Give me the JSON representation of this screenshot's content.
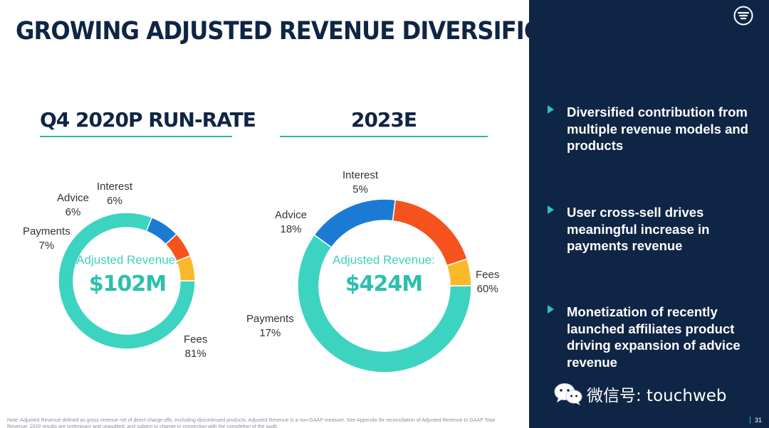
{
  "title": "GROWING ADJUSTED REVENUE DIVERSIFICATION",
  "chart_data": [
    {
      "type": "pie",
      "title": "Q4 2020P RUN-RATE",
      "center_label": "Adjusted Revenue:",
      "center_value": "$102M",
      "categories": [
        "Fees",
        "Payments",
        "Advice",
        "Interest"
      ],
      "values": [
        81,
        7,
        6,
        6
      ],
      "value_labels": [
        "81%",
        "7%",
        "6%",
        "6%"
      ],
      "colors": [
        "#3dd3c1",
        "#1b7bd4",
        "#f5521d",
        "#fbb82b"
      ]
    },
    {
      "type": "pie",
      "title": "2023E",
      "center_label": "Adjusted Revenue:",
      "center_value": "$424M",
      "categories": [
        "Fees",
        "Payments",
        "Advice",
        "Interest"
      ],
      "values": [
        60,
        17,
        18,
        5
      ],
      "value_labels": [
        "60%",
        "17%",
        "18%",
        "5%"
      ],
      "colors": [
        "#3dd3c1",
        "#1b7bd4",
        "#f5521d",
        "#fbb82b"
      ]
    }
  ],
  "sidebar": {
    "bullets": [
      "Diversified contribution from multiple revenue models and products",
      "User cross-sell drives meaningful increase in payments revenue",
      "Monetization of recently launched affiliates product driving expansion of advice revenue"
    ],
    "page_number": "31",
    "logo_icon": "moneylion-logo-icon"
  },
  "watermark": {
    "icon": "wechat-icon",
    "text": "微信号: touchweb"
  },
  "footnote": "Note: Adjusted Revenue defined as gross revenue net of direct charge-offs, excluding discontinued products. Adjusted Revenue is a non-GAAP measure. See Appendix for reconciliation of Adjusted Revenue to GAAP Total Revenue. 2020 results are preliminary and unaudited, and subject to change in connection with the completion of the audit."
}
